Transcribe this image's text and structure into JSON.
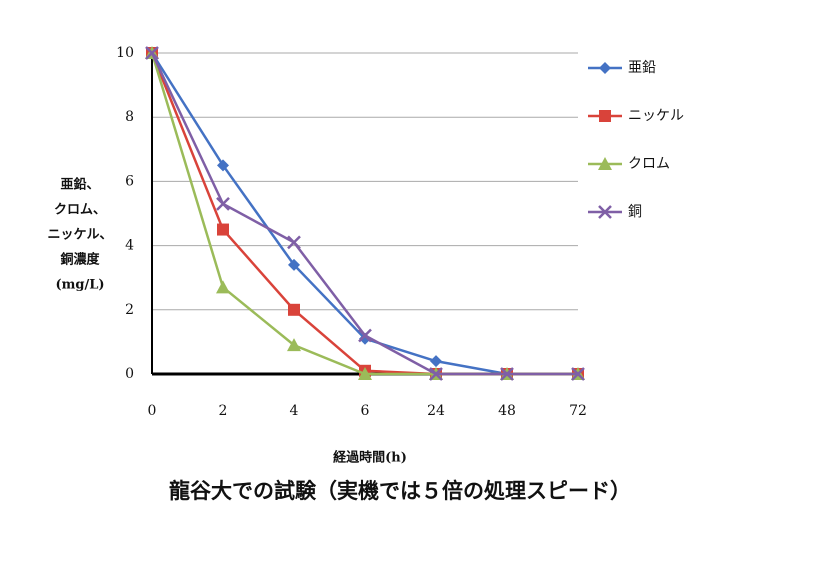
{
  "chart_data": {
    "type": "line",
    "categories": [
      "0",
      "2",
      "4",
      "6",
      "24",
      "48",
      "72"
    ],
    "series": [
      {
        "name": "亜鉛",
        "color": "#4472c4",
        "marker": "diamond",
        "values": [
          10,
          6.5,
          3.4,
          1.1,
          0.4,
          0,
          0
        ]
      },
      {
        "name": "ニッケル",
        "color": "#d9433a",
        "marker": "square",
        "values": [
          10,
          4.5,
          2.0,
          0.1,
          0,
          0,
          0
        ]
      },
      {
        "name": "クロム",
        "color": "#9bbb59",
        "marker": "triangle",
        "values": [
          10,
          2.7,
          0.9,
          0,
          0,
          0,
          0
        ]
      },
      {
        "name": "銅",
        "color": "#7f5fa6",
        "marker": "x",
        "values": [
          10,
          5.3,
          4.1,
          1.2,
          0,
          0,
          0
        ]
      }
    ],
    "ylim": [
      0,
      10
    ],
    "yticks": [
      0,
      2,
      4,
      6,
      8,
      10
    ],
    "grid": true,
    "ylabel": [
      "亜鉛、",
      "クロム、",
      "ニッケル、",
      "銅濃度",
      "(mg/L)"
    ],
    "xlabel": "経過時間(h)",
    "caption": "龍谷大での試験（実機では５倍の処理スピード）",
    "legend": "right"
  }
}
